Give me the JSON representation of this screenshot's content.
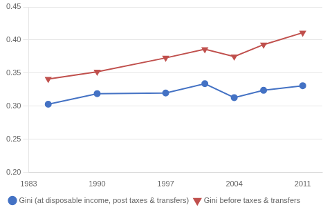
{
  "chart_data": {
    "type": "line",
    "x": [
      1985,
      1990,
      1997,
      2001,
      2004,
      2007,
      2011
    ],
    "series": [
      {
        "name": "Gini (at disposable income, post taxes & transfers)",
        "color": "#4472C4",
        "marker": "circle",
        "values": [
          0.303,
          0.319,
          0.32,
          0.334,
          0.313,
          0.324,
          0.331
        ]
      },
      {
        "name": "Gini before taxes & transfers",
        "color": "#C0504D",
        "marker": "triangle_down",
        "values": [
          0.341,
          0.352,
          0.373,
          0.386,
          0.375,
          0.393,
          0.411
        ]
      }
    ],
    "xlim": [
      1983,
      2013
    ],
    "xticks": [
      1983,
      1990,
      1997,
      2004,
      2011
    ],
    "ylim": [
      0.2,
      0.45
    ],
    "yticks": [
      {
        "value": 0.2,
        "label": "0.20"
      },
      0.25,
      {
        "value": 0.3,
        "label": "0.30"
      },
      0.35,
      {
        "value": 0.4,
        "label": "0.40"
      },
      0.45
    ],
    "grid": "y",
    "legend": "lower left"
  }
}
